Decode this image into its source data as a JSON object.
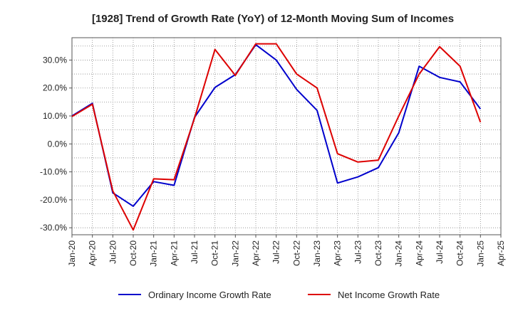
{
  "chart_data": {
    "type": "line",
    "title": "[1928]  Trend of Growth Rate (YoY) of 12-Month Moving Sum of Incomes",
    "xlabel": "",
    "ylabel": "",
    "x": [
      "Jan-20",
      "Apr-20",
      "Jul-20",
      "Oct-20",
      "Jan-21",
      "Apr-21",
      "Jul-21",
      "Oct-21",
      "Jan-22",
      "Apr-22",
      "Jul-22",
      "Oct-22",
      "Jan-23",
      "Apr-23",
      "Jul-23",
      "Oct-23",
      "Jan-24",
      "Apr-24",
      "Jul-24",
      "Oct-24",
      "Jan-25",
      "Apr-25"
    ],
    "ylim": [
      -32.5,
      38.0
    ],
    "yticks": [
      30,
      20,
      10,
      0,
      -10,
      -20,
      -30
    ],
    "ytick_labels": [
      "30.0%",
      "20.0%",
      "10.0%",
      "0.0%",
      "-10.0%",
      "-20.0%",
      "-30.0%"
    ],
    "grid": true,
    "legend_position": "bottom",
    "series": [
      {
        "name": "Ordinary Income Growth Rate",
        "color": "#0000cc",
        "values": [
          10.0,
          14.5,
          -17.5,
          -22.3,
          -13.5,
          -14.8,
          9.5,
          20.2,
          24.8,
          35.5,
          30.0,
          19.5,
          12.0,
          -14.0,
          -11.8,
          -8.5,
          4.0,
          27.8,
          23.8,
          22.2,
          12.5,
          null
        ]
      },
      {
        "name": "Net Income Growth Rate",
        "color": "#dd0000",
        "values": [
          9.8,
          14.2,
          -16.8,
          -30.8,
          -12.5,
          -12.8,
          9.2,
          33.8,
          24.5,
          35.8,
          35.8,
          25.0,
          20.0,
          -3.5,
          -6.5,
          -5.8,
          10.0,
          25.0,
          34.8,
          27.8,
          7.8,
          null
        ]
      }
    ]
  }
}
